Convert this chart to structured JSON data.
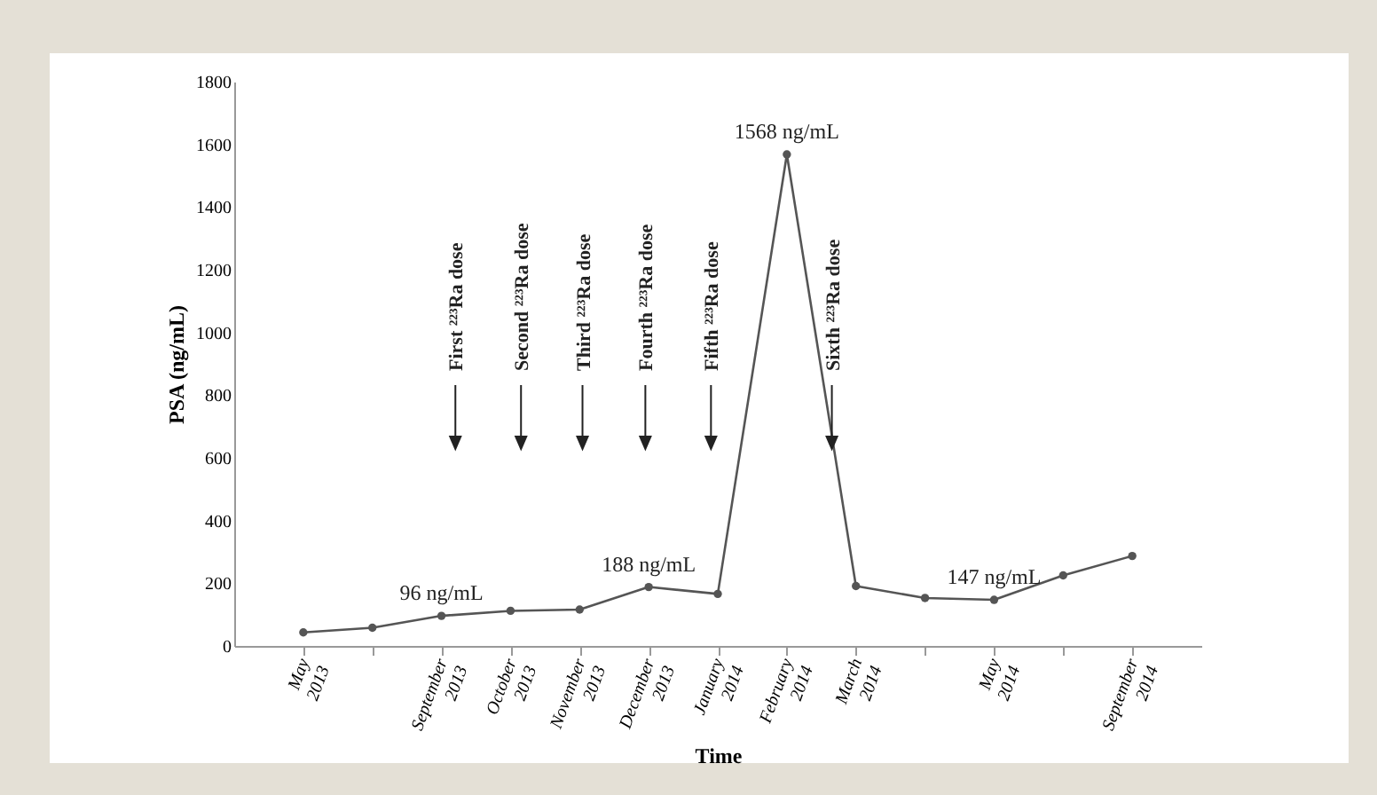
{
  "chart_data": {
    "type": "line",
    "xlabel": "Time",
    "ylabel": "PSA (ng/mL)",
    "categories": [
      "May 2013",
      null,
      "September 2013",
      "October 2013",
      "November 2013",
      "December 2013",
      "January 2014",
      "February 2014",
      "March 2014",
      null,
      "May 2014",
      null,
      "September 2014"
    ],
    "values": [
      43,
      58,
      96,
      112,
      116,
      188,
      166,
      1568,
      191,
      153,
      147,
      225,
      287
    ],
    "color": "#555555",
    "marker": "circle",
    "line_style": "solid",
    "ylim": [
      0,
      1800
    ],
    "yticks": [
      0,
      200,
      400,
      600,
      800,
      1000,
      1200,
      1400,
      1600,
      1800
    ],
    "annotations": [
      {
        "text": "96 ng/mL",
        "x": "September 2013",
        "y": 96
      },
      {
        "text": "188 ng/mL",
        "x": "December 2013",
        "y": 188
      },
      {
        "text": "1568 ng/mL",
        "x": "February 2014",
        "y": 1568
      },
      {
        "text": "147 ng/mL",
        "x": "May 2014",
        "y": 147
      },
      "First ²²³Ra dose",
      "Second ²²³Ra dose",
      "Third ²²³Ra dose",
      "Fourth ²²³Ra dose",
      "Fifth ²²³Ra dose",
      "Sixth ²²³Ra dose"
    ]
  }
}
